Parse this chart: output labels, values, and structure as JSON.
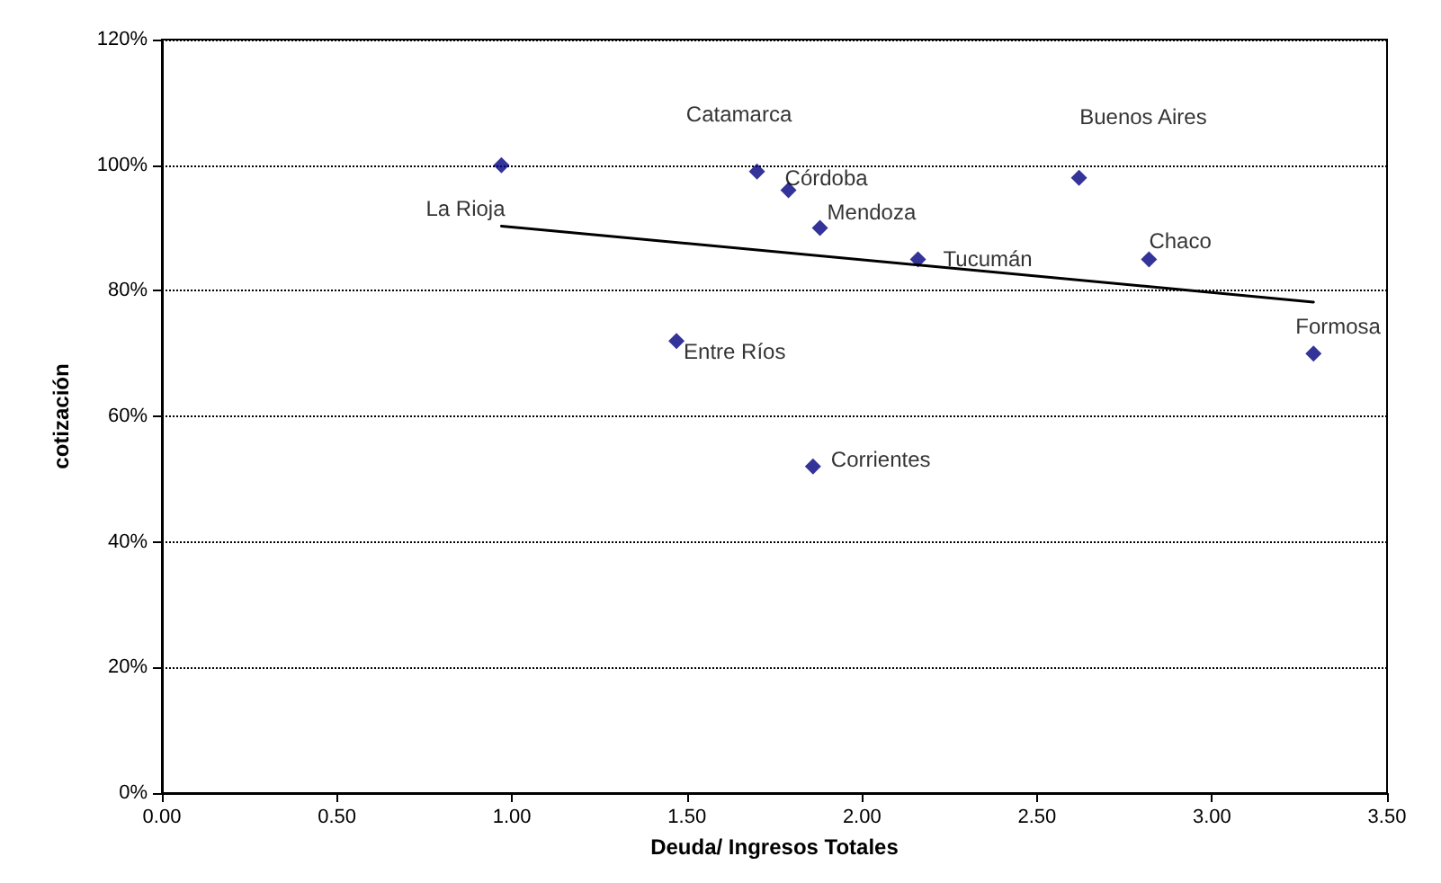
{
  "chart_data": {
    "type": "scatter",
    "xlabel": "Deuda/ Ingresos Totales",
    "ylabel": "cotización",
    "xlim": [
      0,
      3.5
    ],
    "ylim": [
      0,
      120
    ],
    "xticks": [
      {
        "value": 0,
        "label": "0.00"
      },
      {
        "value": 0.5,
        "label": "0.50"
      },
      {
        "value": 1,
        "label": "1.00"
      },
      {
        "value": 1.5,
        "label": "1.50"
      },
      {
        "value": 2,
        "label": "2.00"
      },
      {
        "value": 2.5,
        "label": "2.50"
      },
      {
        "value": 3,
        "label": "3.00"
      },
      {
        "value": 3.5,
        "label": "3.50"
      }
    ],
    "yticks": [
      {
        "value": 0,
        "label": "0%"
      },
      {
        "value": 20,
        "label": "20%"
      },
      {
        "value": 40,
        "label": "40%"
      },
      {
        "value": 60,
        "label": "60%"
      },
      {
        "value": 80,
        "label": "80%"
      },
      {
        "value": 100,
        "label": "100%"
      },
      {
        "value": 120,
        "label": "120%"
      }
    ],
    "grid": "y",
    "marker": "diamond",
    "series": [
      {
        "color": "#000080",
        "x": [
          0.97,
          1.7,
          1.79,
          1.88,
          2.16,
          2.62,
          2.82,
          3.29,
          1.47,
          1.86
        ],
        "values": [
          100,
          99,
          96,
          90,
          85,
          98,
          85,
          70,
          72,
          52
        ],
        "value_labels": [
          "La Rioja",
          "Catamarca",
          "Córdoba",
          "Mendoza",
          "Tucumán",
          "Buenos Aires",
          "Chaco",
          "Formosa",
          "Entre Ríos",
          "Corrientes"
        ]
      },
      {
        "type": "line",
        "color": "#000000",
        "x": [
          0.97,
          3.29
        ],
        "values": [
          90.3,
          78.2
        ],
        "marker": "none",
        "line_style": "solid"
      }
    ]
  }
}
